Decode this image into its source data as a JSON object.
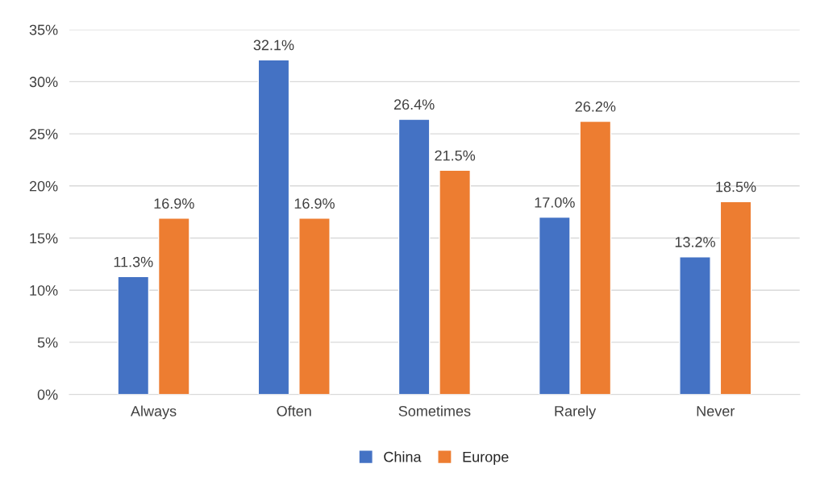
{
  "chart_data": {
    "type": "bar",
    "categories": [
      "Always",
      "Often",
      "Sometimes",
      "Rarely",
      "Never"
    ],
    "series": [
      {
        "name": "China",
        "color": "#4472c4",
        "values": [
          11.3,
          32.1,
          26.4,
          17.0,
          13.2
        ],
        "value_labels": [
          "11.3%",
          "32.1%",
          "26.4%",
          "17.0%",
          "13.2%"
        ]
      },
      {
        "name": "Europe",
        "color": "#ed7d31",
        "values": [
          16.9,
          16.9,
          21.5,
          26.2,
          18.5
        ],
        "value_labels": [
          "16.9%",
          "16.9%",
          "21.5%",
          "26.2%",
          "18.5%"
        ]
      }
    ],
    "ylim": [
      0,
      35
    ],
    "yticks": [
      {
        "value": 0,
        "label": "0%"
      },
      {
        "value": 5,
        "label": "5%"
      },
      {
        "value": 10,
        "label": "10%"
      },
      {
        "value": 15,
        "label": "15%"
      },
      {
        "value": 20,
        "label": "20%"
      },
      {
        "value": 25,
        "label": "25%"
      },
      {
        "value": 30,
        "label": "30%"
      },
      {
        "value": 35,
        "label": "35%"
      }
    ],
    "grid": "y",
    "legend": "bottom"
  }
}
